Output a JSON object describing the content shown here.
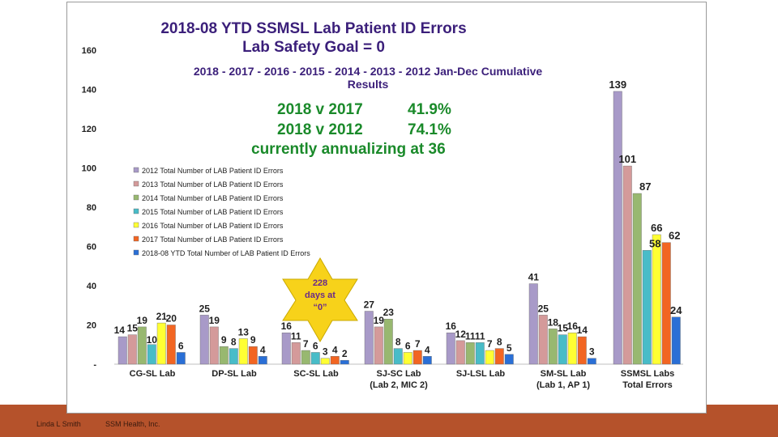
{
  "footer": {
    "author": "Linda L Smith",
    "org": "SSM Health, Inc."
  },
  "annotations": {
    "goal": "Lab Safety Goal = 0",
    "cumulative_line1": "2018 - 2017 - 2016 - 2015 - 2014 - 2013 - 2012 Jan-Dec Cumulative",
    "cumulative_line2": "Results",
    "compare1_label": "2018 v 2017",
    "compare1_value": "41.9%",
    "compare2_label": "2018 v 2012",
    "compare2_value": "74.1%",
    "annualizing": "currently annualizing at 36",
    "star_line1": "228",
    "star_line2": "days at",
    "star_line3": "“0”"
  },
  "colors": {
    "footer": "#b5522b",
    "star": "#f7d21a",
    "compare_text": "#1a8a2a",
    "title_text": "#3b1f7a"
  },
  "chart_data": {
    "type": "bar",
    "title": "2018-08 YTD SSMSL Lab Patient ID Errors",
    "xlabel": "",
    "ylabel": "",
    "ylim": [
      0,
      160
    ],
    "yticks": [
      "-",
      "20",
      "40",
      "60",
      "80",
      "100",
      "120",
      "140",
      "160"
    ],
    "legend_position": "upper-left (inside plot)",
    "categories": [
      [
        "CG-SL Lab"
      ],
      [
        "DP-SL Lab"
      ],
      [
        "SC-SL Lab"
      ],
      [
        "SJ-SC Lab",
        "(Lab 2, MIC 2)"
      ],
      [
        "SJ-LSL Lab"
      ],
      [
        "SM-SL Lab",
        "(Lab 1, AP 1)"
      ],
      [
        "SSMSL Labs",
        "Total Errors"
      ]
    ],
    "series": [
      {
        "name": "2012 Total Number of LAB Patient ID Errors",
        "color": "#a89ac8",
        "values": [
          14,
          25,
          16,
          27,
          16,
          41,
          139
        ]
      },
      {
        "name": "2013 Total Number of LAB Patient ID Errors",
        "color": "#d49a9a",
        "values": [
          15,
          19,
          11,
          19,
          12,
          25,
          101
        ]
      },
      {
        "name": "2014 Total Number of LAB Patient ID Errors",
        "color": "#98b870",
        "values": [
          19,
          9,
          7,
          23,
          11,
          18,
          87
        ]
      },
      {
        "name": "2015 Total Number of LAB Patient ID Errors",
        "color": "#48bcc8",
        "values": [
          10,
          8,
          6,
          8,
          11,
          15,
          58
        ]
      },
      {
        "name": "2016 Total Number of LAB Patient ID Errors",
        "color": "#ffff33",
        "values": [
          21,
          13,
          3,
          6,
          7,
          16,
          66
        ]
      },
      {
        "name": "2017 Total Number of LAB Patient ID Errors",
        "color": "#f26522",
        "values": [
          20,
          9,
          4,
          7,
          8,
          14,
          62
        ]
      },
      {
        "name": "2018-08 YTD Total Number of LAB Patient ID Errors",
        "color": "#2a6fd6",
        "values": [
          6,
          4,
          2,
          4,
          5,
          3,
          24
        ]
      }
    ]
  }
}
